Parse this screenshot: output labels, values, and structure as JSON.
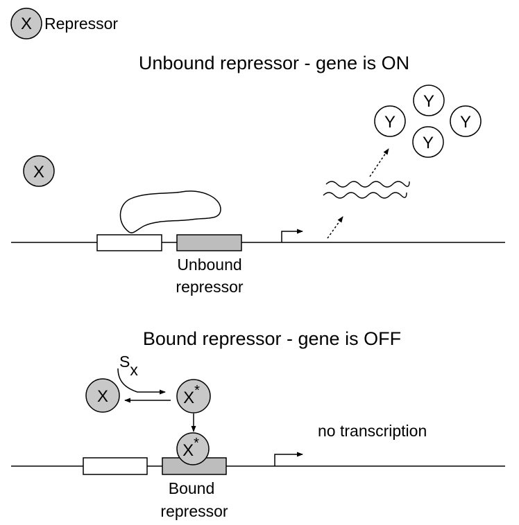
{
  "legend": {
    "symbol": "X",
    "label": "Repressor"
  },
  "top_panel": {
    "title": "Unbound repressor - gene is ON",
    "free_repressor": "X",
    "products": [
      "Y",
      "Y",
      "Y",
      "Y"
    ],
    "repressor_site_label_line1": "Unbound",
    "repressor_site_label_line2": "repressor"
  },
  "bottom_panel": {
    "title": "Bound repressor - gene is OFF",
    "signal": "S",
    "signal_subscript": "x",
    "inactive_repressor": "X",
    "active_repressor": "X",
    "active_repressor_bound": "X",
    "active_marker": "*",
    "transcription_label": "no transcription",
    "repressor_site_label_line1": "Bound",
    "repressor_site_label_line2": "repressor"
  },
  "colors": {
    "repressor_fill": "#c8c8c8",
    "operator_fill": "#bdbdbd",
    "line": "#000000",
    "background": "#ffffff"
  }
}
